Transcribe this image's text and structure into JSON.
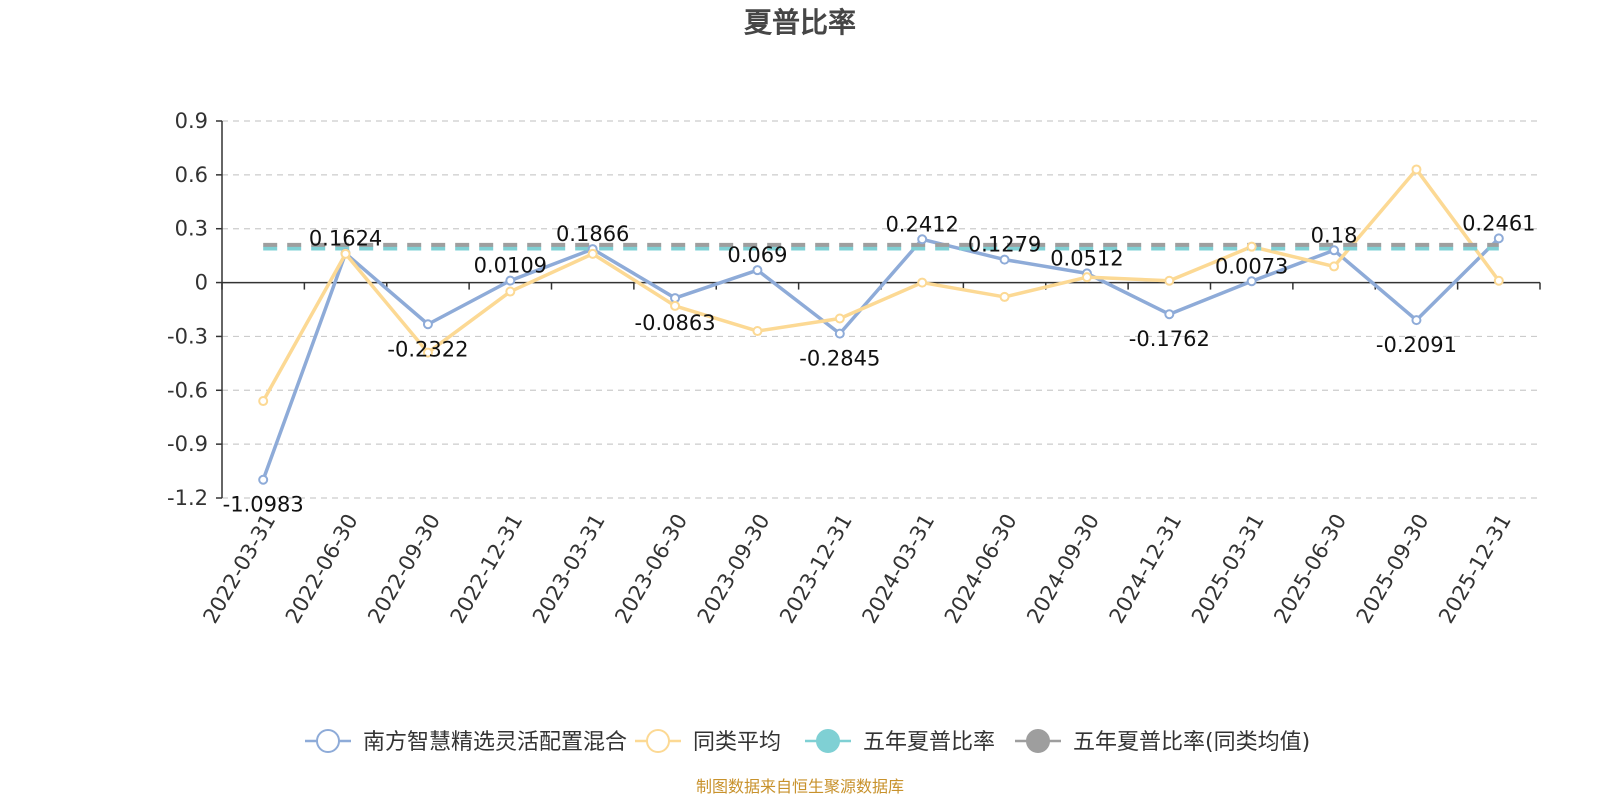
{
  "chart_data": {
    "type": "line",
    "title": "夏普比率",
    "x": [
      "2022-03-31",
      "2022-06-30",
      "2022-09-30",
      "2022-12-31",
      "2023-03-31",
      "2023-06-30",
      "2023-09-30",
      "2023-12-31",
      "2024-03-31",
      "2024-06-30",
      "2024-09-30",
      "2024-12-31",
      "2025-03-31",
      "2025-06-30",
      "2025-09-30",
      "2025-12-31"
    ],
    "y_ticks": [
      "0.9",
      "0.6",
      "0.3",
      "0",
      "-0.3",
      "-0.6",
      "-0.9",
      "-1.2"
    ],
    "ylim": [
      -1.2,
      0.9
    ],
    "grid": true,
    "legend_position": "bottom",
    "series": [
      {
        "name": "南方智慧精选灵活配置混合",
        "color": "#8eabd8",
        "values": [
          -1.0983,
          0.1624,
          -0.2322,
          0.0109,
          0.1866,
          -0.0863,
          0.069,
          -0.2845,
          0.2412,
          0.1279,
          0.0512,
          -0.1762,
          0.0073,
          0.18,
          -0.2091,
          0.2461
        ],
        "labels": [
          "-1.0983",
          "0.1624",
          "-0.2322",
          "0.0109",
          "0.1866",
          "-0.0863",
          "0.069",
          "-0.2845",
          "0.2412",
          "0.1279",
          "0.0512",
          "-0.1762",
          "0.0073",
          "0.18",
          "-0.2091",
          "0.2461"
        ]
      },
      {
        "name": "同类平均",
        "color": "#fcd994",
        "values": [
          -0.66,
          0.16,
          -0.39,
          -0.05,
          0.16,
          -0.13,
          -0.27,
          -0.2,
          0.0,
          -0.08,
          0.03,
          0.01,
          0.2,
          0.09,
          0.63,
          0.01
        ]
      },
      {
        "name": "五年夏普比率",
        "color": "#7fd0d4",
        "values": [
          0.19,
          0.19,
          0.19,
          0.19,
          0.19,
          0.19,
          0.19,
          0.19,
          0.19,
          0.19,
          0.19,
          0.19,
          0.19,
          0.19,
          0.19,
          0.19
        ]
      },
      {
        "name": "五年夏普比率(同类均值)",
        "color": "#9e9e9e",
        "values": [
          0.21,
          0.21,
          0.21,
          0.21,
          0.21,
          0.21,
          0.21,
          0.21,
          0.21,
          0.21,
          0.21,
          0.21,
          0.21,
          0.21,
          0.21,
          0.21
        ]
      }
    ],
    "source": "制图数据来自恒生聚源数据库"
  }
}
